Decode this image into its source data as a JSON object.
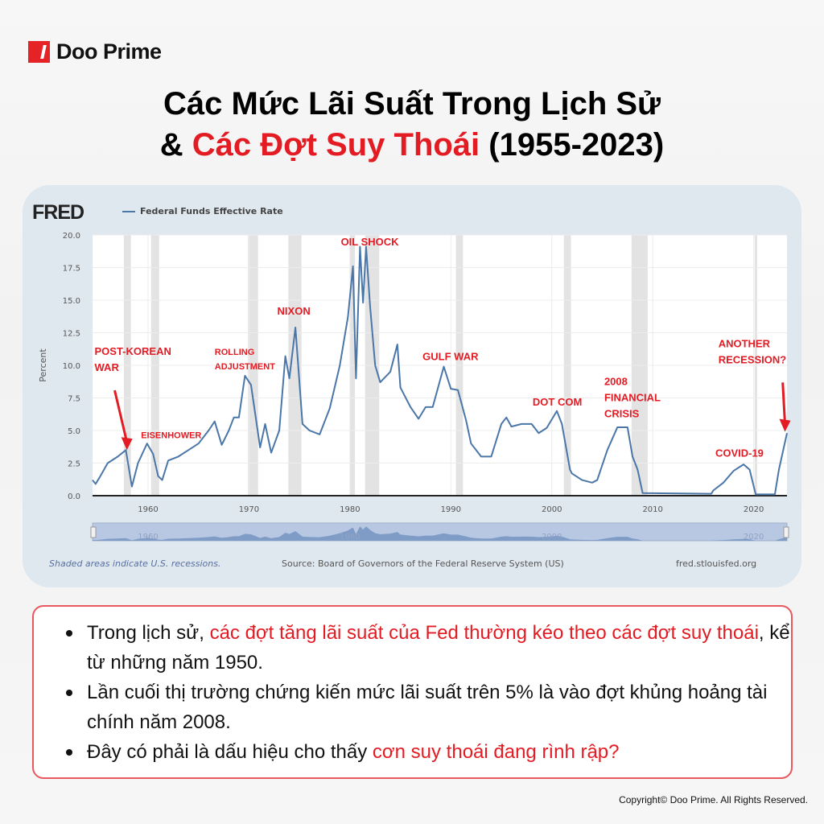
{
  "brand": {
    "name": "Doo Prime"
  },
  "title": {
    "line1": "Các Mức Lãi Suất Trong Lịch Sử",
    "line2_prefix": "& ",
    "line2_red": "Các Đợt Suy Thoái",
    "line2_suffix": " (1955-2023)"
  },
  "chart_data": {
    "type": "line",
    "logo": "FRED",
    "ylabel": "Percent",
    "xlim": [
      1954.5,
      2023.3
    ],
    "ylim": [
      0,
      20
    ],
    "grid": true,
    "legend_position": "top-left",
    "yticks": [
      "0.0",
      "2.5",
      "5.0",
      "7.5",
      "10.0",
      "12.5",
      "15.0",
      "17.5",
      "20.0"
    ],
    "xticks": [
      "1960",
      "1970",
      "1980",
      "1990",
      "2000",
      "2010",
      "2020"
    ],
    "navigator_labels": [
      "1960",
      "1980",
      "2000",
      "2020"
    ],
    "series": [
      {
        "name": "Federal Funds Effective Rate",
        "color": "#4a76a8",
        "points": [
          [
            1954.5,
            1.2
          ],
          [
            1954.8,
            0.9
          ],
          [
            1955.2,
            1.4
          ],
          [
            1956,
            2.5
          ],
          [
            1957,
            3.0
          ],
          [
            1957.8,
            3.5
          ],
          [
            1958.4,
            0.7
          ],
          [
            1959,
            2.5
          ],
          [
            1959.9,
            4.0
          ],
          [
            1960.5,
            3.2
          ],
          [
            1961,
            1.5
          ],
          [
            1961.4,
            1.2
          ],
          [
            1962,
            2.7
          ],
          [
            1963,
            3.0
          ],
          [
            1964,
            3.5
          ],
          [
            1965,
            4.0
          ],
          [
            1966,
            5.0
          ],
          [
            1966.6,
            5.7
          ],
          [
            1967.3,
            3.9
          ],
          [
            1968,
            5.0
          ],
          [
            1968.5,
            6.0
          ],
          [
            1969,
            6.0
          ],
          [
            1969.6,
            9.2
          ],
          [
            1970.2,
            8.5
          ],
          [
            1971.1,
            3.7
          ],
          [
            1971.6,
            5.5
          ],
          [
            1972.2,
            3.3
          ],
          [
            1973,
            5.0
          ],
          [
            1973.6,
            10.7
          ],
          [
            1974,
            9.0
          ],
          [
            1974.6,
            12.9
          ],
          [
            1975.3,
            5.5
          ],
          [
            1976,
            5.0
          ],
          [
            1977,
            4.7
          ],
          [
            1978,
            6.7
          ],
          [
            1979,
            10.0
          ],
          [
            1979.8,
            13.7
          ],
          [
            1980.3,
            17.6
          ],
          [
            1980.6,
            9.0
          ],
          [
            1981,
            19.1
          ],
          [
            1981.3,
            14.8
          ],
          [
            1981.6,
            19.1
          ],
          [
            1982,
            14.5
          ],
          [
            1982.5,
            10.0
          ],
          [
            1983,
            8.7
          ],
          [
            1984,
            9.5
          ],
          [
            1984.7,
            11.6
          ],
          [
            1985,
            8.3
          ],
          [
            1986,
            6.8
          ],
          [
            1986.8,
            5.9
          ],
          [
            1987.5,
            6.8
          ],
          [
            1988.2,
            6.8
          ],
          [
            1989.3,
            9.9
          ],
          [
            1990,
            8.2
          ],
          [
            1990.7,
            8.1
          ],
          [
            1991.5,
            5.8
          ],
          [
            1992,
            4.0
          ],
          [
            1993,
            3.0
          ],
          [
            1994,
            3.0
          ],
          [
            1995,
            5.5
          ],
          [
            1995.5,
            6.0
          ],
          [
            1996,
            5.3
          ],
          [
            1997,
            5.5
          ],
          [
            1998,
            5.5
          ],
          [
            1998.7,
            4.8
          ],
          [
            1999.5,
            5.2
          ],
          [
            2000.5,
            6.5
          ],
          [
            2001,
            5.5
          ],
          [
            2001.8,
            2.0
          ],
          [
            2002,
            1.7
          ],
          [
            2003,
            1.2
          ],
          [
            2004,
            1.0
          ],
          [
            2004.5,
            1.2
          ],
          [
            2005.5,
            3.5
          ],
          [
            2006.5,
            5.25
          ],
          [
            2007.5,
            5.25
          ],
          [
            2008,
            3.0
          ],
          [
            2008.5,
            2.0
          ],
          [
            2009,
            0.2
          ],
          [
            2015.8,
            0.15
          ],
          [
            2016,
            0.4
          ],
          [
            2017,
            1.0
          ],
          [
            2018,
            1.9
          ],
          [
            2019,
            2.4
          ],
          [
            2019.6,
            2.0
          ],
          [
            2020.2,
            0.1
          ],
          [
            2022.1,
            0.1
          ],
          [
            2022.5,
            2.0
          ],
          [
            2023.3,
            4.8
          ]
        ]
      }
    ],
    "recessions": [
      [
        1957.6,
        1958.3
      ],
      [
        1960.3,
        1961.1
      ],
      [
        1969.9,
        1970.9
      ],
      [
        1973.9,
        1975.2
      ],
      [
        1980.0,
        1980.5
      ],
      [
        1981.5,
        1982.9
      ],
      [
        1990.5,
        1991.2
      ],
      [
        2001.2,
        2001.9
      ],
      [
        2007.9,
        2009.5
      ],
      [
        2020.1,
        2020.3
      ]
    ],
    "annotations": [
      {
        "lines": [
          "POST-KOREAN",
          "WAR"
        ],
        "x": 1954.7,
        "y": 10.8,
        "arrow_to": [
          1957.9,
          3.5
        ]
      },
      {
        "lines": [
          "EISENHOWER"
        ],
        "x": 1959.3,
        "y": 4.4
      },
      {
        "lines": [
          "ROLLING",
          "ADJUSTMENT"
        ],
        "x": 1966.6,
        "y": 10.8
      },
      {
        "lines": [
          "NIXON"
        ],
        "x": 1972.8,
        "y": 13.9
      },
      {
        "lines": [
          "OIL SHOCK"
        ],
        "x": 1979.1,
        "y": 19.2
      },
      {
        "lines": [
          "GULF WAR"
        ],
        "x": 1987.2,
        "y": 10.4
      },
      {
        "lines": [
          "DOT COM"
        ],
        "x": 1998.1,
        "y": 6.9
      },
      {
        "lines": [
          "2008",
          "FINANCIAL",
          "CRISIS"
        ],
        "x": 2005.2,
        "y": 8.5
      },
      {
        "lines": [
          "COVID-19"
        ],
        "x": 2016.2,
        "y": 3.0
      },
      {
        "lines": [
          "ANOTHER",
          "RECESSION?"
        ],
        "x": 2016.5,
        "y": 11.4,
        "arrow_to": [
          2023.1,
          4.9
        ]
      }
    ],
    "footnote": "Shaded areas indicate U.S. recessions.",
    "source": "Source: Board of Governors of the Federal Reserve System (US)",
    "site": "fred.stlouisfed.org"
  },
  "bullets": [
    {
      "a": "Trong lịch sử, ",
      "red": "các đợt tăng lãi suất của Fed thường kéo theo các đợt suy thoái",
      "b": ", kể từ những năm 1950."
    },
    {
      "a": "Lần cuối thị trường chứng kiến mức lãi suất trên 5% là vào đợt khủng hoảng tài chính năm 2008.",
      "red": "",
      "b": ""
    },
    {
      "a": "Đây có phải là dấu hiệu cho thấy ",
      "red": "cơn suy thoái đang rình rập?",
      "b": ""
    }
  ],
  "copyright": "Copyright© Doo Prime. All Rights Reserved.",
  "colors": {
    "accent": "#e31b23",
    "line": "#4a76a8",
    "card": "#dfe7ef"
  }
}
